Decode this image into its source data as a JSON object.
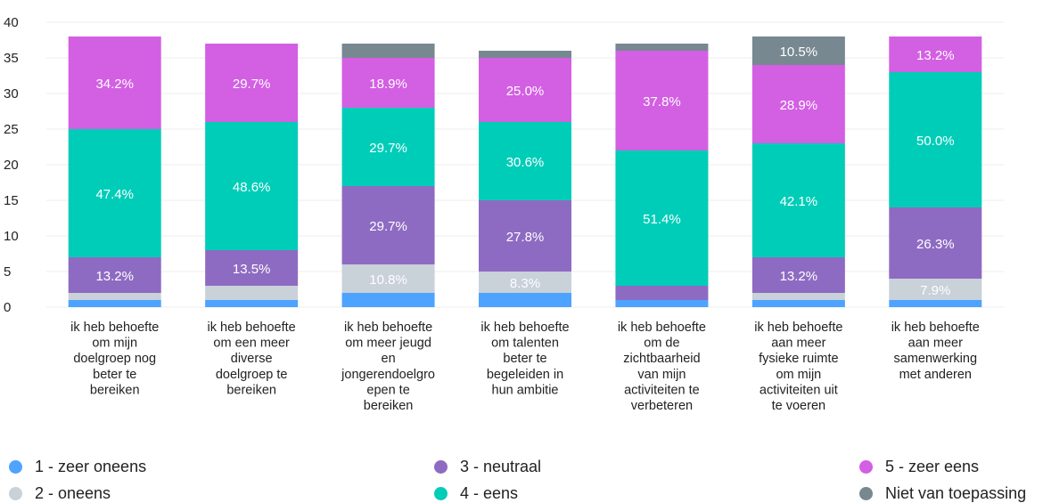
{
  "chart_data": {
    "type": "bar",
    "stacked": true,
    "ylim": [
      0,
      40
    ],
    "yticks": [
      0,
      5,
      10,
      15,
      20,
      25,
      30,
      35,
      40
    ],
    "grid": true,
    "legend_position": "bottom",
    "categories": [
      [
        "ik heb behoefte",
        "om mijn",
        "doelgroep nog",
        "beter te",
        "bereiken"
      ],
      [
        "ik heb behoefte",
        "om een meer",
        "diverse",
        "doelgroep te",
        "bereiken"
      ],
      [
        "ik heb behoefte",
        "om meer jeugd",
        "en",
        "jongerendoelgro",
        "epen te",
        "bereiken"
      ],
      [
        "ik heb behoefte",
        "om talenten",
        "beter te",
        "begeleiden in",
        "hun ambitie"
      ],
      [
        "ik heb behoefte",
        "om de",
        "zichtbaarheid",
        "van mijn",
        "activiteiten te",
        "verbeteren"
      ],
      [
        "ik heb behoefte",
        "aan meer",
        "fysieke ruimte",
        "om mijn",
        "activiteiten uit",
        "te voeren"
      ],
      [
        "ik heb behoefte",
        "aan meer",
        "samenwerking",
        "met anderen"
      ]
    ],
    "series": [
      {
        "name": "1 - zeer oneens",
        "color": "#4da3ff",
        "values": [
          1,
          1,
          2,
          2,
          1,
          1,
          1
        ],
        "labels": [
          "",
          "",
          "",
          "",
          "",
          "",
          ""
        ]
      },
      {
        "name": "2 - oneens",
        "color": "#c9d1d9",
        "values": [
          1,
          2,
          4,
          3,
          0,
          1,
          3
        ],
        "labels": [
          "",
          "",
          "10.8%",
          "8.3%",
          "",
          "",
          "7.9%"
        ]
      },
      {
        "name": "3 - neutraal",
        "color": "#8e6bc2",
        "values": [
          5,
          5,
          11,
          10,
          2,
          5,
          10
        ],
        "labels": [
          "13.2%",
          "13.5%",
          "29.7%",
          "27.8%",
          "",
          "13.2%",
          "26.3%"
        ]
      },
      {
        "name": "4 - eens",
        "color": "#00cdb8",
        "values": [
          18,
          18,
          11,
          11,
          19,
          16,
          19
        ],
        "labels": [
          "47.4%",
          "48.6%",
          "29.7%",
          "30.6%",
          "51.4%",
          "42.1%",
          "50.0%"
        ]
      },
      {
        "name": "5 - zeer eens",
        "color": "#d35fe3",
        "values": [
          13,
          11,
          7,
          9,
          14,
          11,
          5
        ],
        "labels": [
          "34.2%",
          "29.7%",
          "18.9%",
          "25.0%",
          "37.8%",
          "28.9%",
          "13.2%"
        ]
      },
      {
        "name": "Niet van toepassing",
        "color": "#778890",
        "values": [
          0,
          0,
          2,
          1,
          1,
          4,
          0
        ],
        "labels": [
          "",
          "",
          "",
          "",
          "",
          "10.5%",
          ""
        ]
      }
    ]
  }
}
